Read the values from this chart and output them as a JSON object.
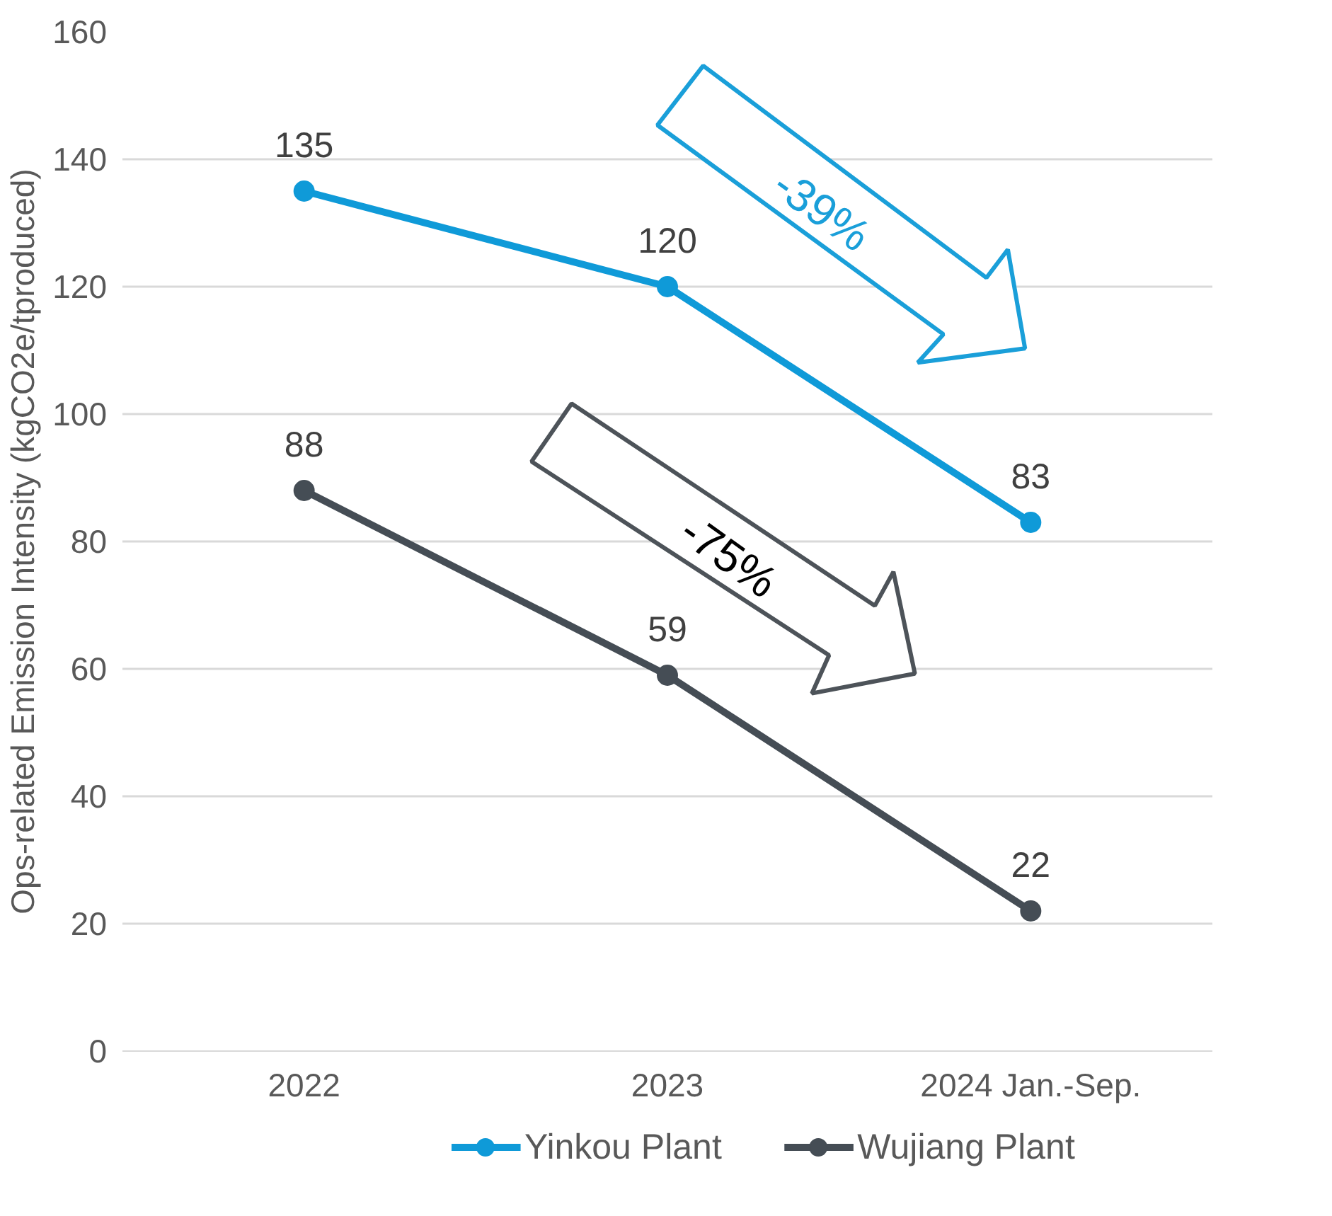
{
  "chart_data": {
    "type": "line",
    "ylabel": "Ops-related Emission Intensity (kgCO2e/tproduced)",
    "categories": [
      "2022",
      "2023",
      "2024 Jan.-Sep."
    ],
    "series": [
      {
        "name": "Yinkou Plant",
        "color": "#0f9ad8",
        "values": [
          135,
          120,
          83
        ]
      },
      {
        "name": "Wujiang Plant",
        "color": "#454d55",
        "values": [
          88,
          59,
          22
        ]
      }
    ],
    "ylim": [
      0,
      160
    ],
    "yticks": [
      0,
      20,
      40,
      60,
      80,
      100,
      120,
      140,
      160
    ],
    "grid": "y",
    "legend": "bottom",
    "marker": "circle",
    "line_style": "solid",
    "data_labels": true,
    "annotations": [
      "-39%",
      "-75%"
    ]
  }
}
